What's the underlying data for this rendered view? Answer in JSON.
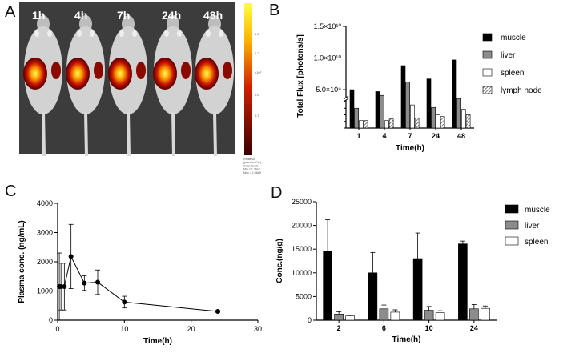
{
  "panels": {
    "a": "A",
    "b": "B",
    "c": "C",
    "d": "D"
  },
  "imaging": {
    "time_labels": [
      "1h",
      "4h",
      "7h",
      "24h",
      "48h"
    ],
    "colorbar_note_lines": [
      "Radiance",
      "(p/sec/cm²/sr)",
      "Color Scale",
      "Min = 1.36e7",
      "Max = 1.96e9"
    ],
    "colorbar_tick_marks": [
      "1.5",
      "1.2",
      "×10⁹",
      "0.6",
      "0.3"
    ]
  },
  "chart_data": [
    {
      "id": "B",
      "type": "bar",
      "ylabel": "Total Flux [photons/s]",
      "xlabel": "Time(h)",
      "categories": [
        "1",
        "4",
        "7",
        "24",
        "48"
      ],
      "ytick_labels": [
        "1.5×10¹⁰",
        "1.0×10¹⁰",
        "5.0×10⁹"
      ],
      "broken_axis": true,
      "series": [
        {
          "name": "muscle",
          "color": "#000000",
          "values": [
            5000000000.0,
            4700000000.0,
            8800000000.0,
            6700000000.0,
            9700000000.0
          ]
        },
        {
          "name": "liver",
          "color": "#8c8c8c",
          "values": [
            1200000000.0,
            4100000000.0,
            6200000000.0,
            2200000000.0,
            3600000000.0
          ]
        },
        {
          "name": "spleen",
          "color": "#ffffff",
          "values": [
            450000000.0,
            450000000.0,
            1400000000.0,
            800000000.0,
            1900000000.0
          ]
        },
        {
          "name": "lymph node",
          "color": "hatch",
          "values": [
            450000000.0,
            550000000.0,
            600000000.0,
            700000000.0,
            800000000.0
          ]
        }
      ]
    },
    {
      "id": "C",
      "type": "line",
      "xlabel": "Time(h)",
      "ylabel": "Plasma conc. (ng/mL)",
      "xlim": [
        0,
        30
      ],
      "ylim": [
        0,
        4000
      ],
      "xticks": [
        0,
        10,
        20,
        30
      ],
      "yticks": [
        0,
        1000,
        2000,
        3000,
        4000
      ],
      "points": [
        {
          "x": 0.25,
          "y": 1150,
          "err": 1150
        },
        {
          "x": 0.5,
          "y": 1150,
          "err": 800
        },
        {
          "x": 1,
          "y": 1150,
          "err": 800
        },
        {
          "x": 2,
          "y": 2180,
          "err": 1100
        },
        {
          "x": 4,
          "y": 1270,
          "err": 250
        },
        {
          "x": 6,
          "y": 1300,
          "err": 420
        },
        {
          "x": 10,
          "y": 620,
          "err": 200
        },
        {
          "x": 24,
          "y": 300,
          "err": 30
        }
      ]
    },
    {
      "id": "D",
      "type": "bar",
      "xlabel": "Time(h)",
      "ylabel": "Conc.(ng/g)",
      "categories": [
        "2",
        "6",
        "10",
        "24"
      ],
      "ylim": [
        0,
        25000
      ],
      "yticks": [
        0,
        5000,
        10000,
        15000,
        20000,
        25000
      ],
      "series": [
        {
          "name": "muscle",
          "color": "#000000",
          "values": [
            14500,
            10000,
            13000,
            16100
          ],
          "errors": [
            6700,
            4300,
            5400,
            600
          ]
        },
        {
          "name": "liver",
          "color": "#8c8c8c",
          "values": [
            1300,
            2400,
            2100,
            2400
          ],
          "errors": [
            500,
            800,
            800,
            900
          ]
        },
        {
          "name": "spleen",
          "color": "#ffffff",
          "values": [
            900,
            1700,
            1600,
            2500
          ],
          "errors": [
            200,
            500,
            400,
            500
          ]
        }
      ]
    }
  ]
}
